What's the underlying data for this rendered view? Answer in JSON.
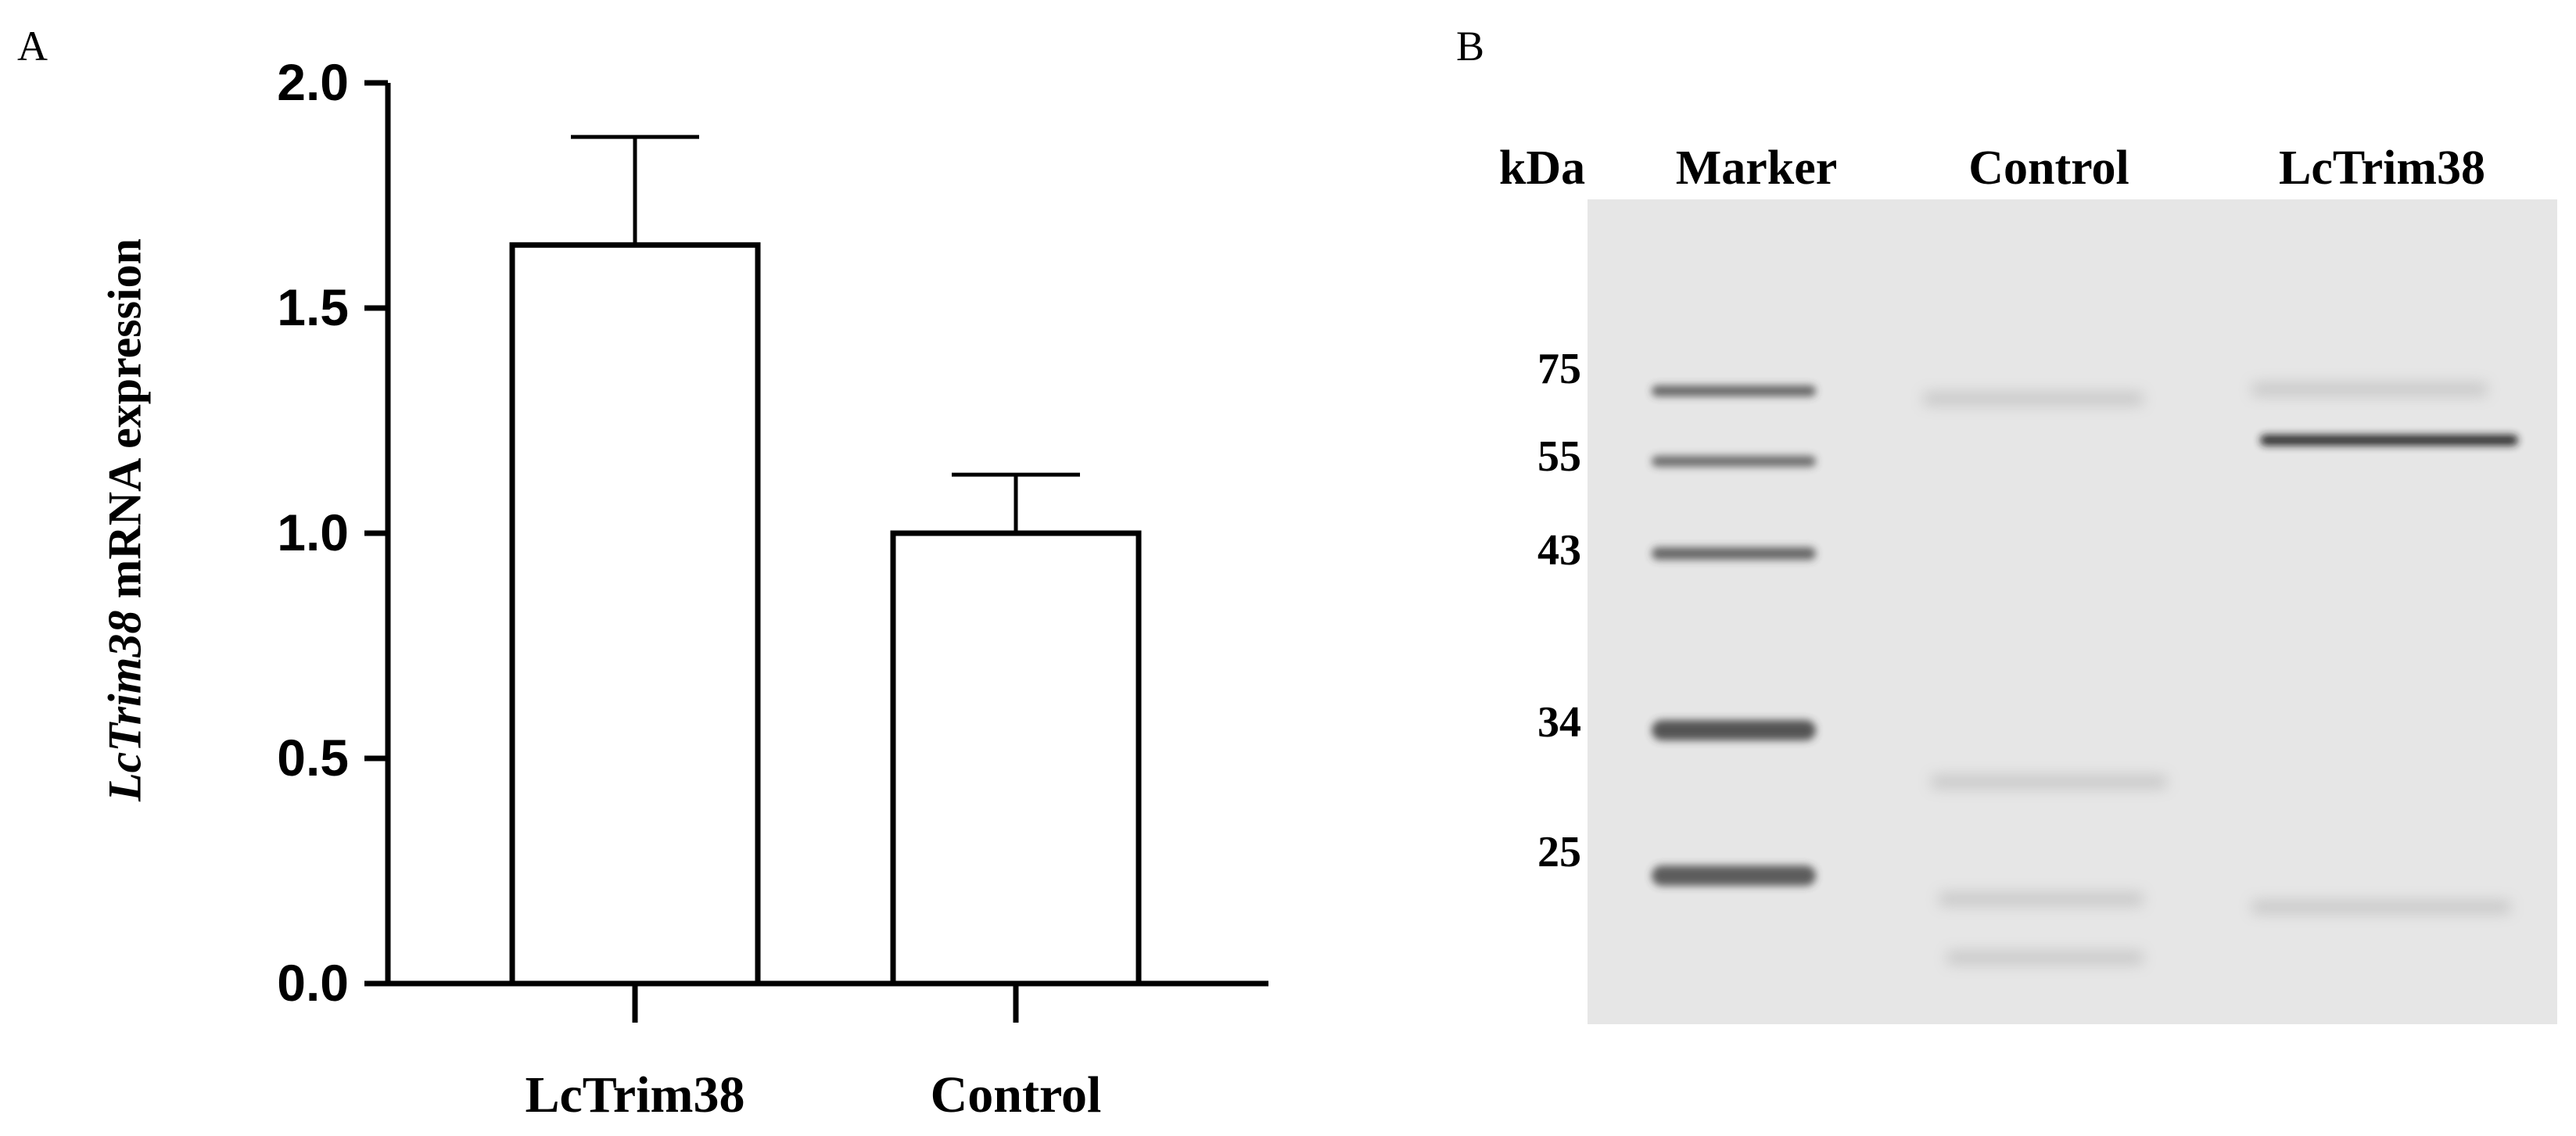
{
  "panels": {
    "a_label": "A",
    "b_label": "B"
  },
  "chart_data": {
    "type": "bar",
    "title": "",
    "categories": [
      "LcTrim38",
      "Control"
    ],
    "values": [
      1.64,
      1.0
    ],
    "errors": [
      0.24,
      0.13
    ],
    "ylabel_italic": "LcTrim38",
    "ylabel_rest": " mRNA expression",
    "xlabel": "",
    "ylim": [
      0,
      2.0
    ],
    "yticks": [
      "0.0",
      "0.5",
      "1.0",
      "1.5",
      "2.0"
    ],
    "ytick_values": [
      0,
      0.5,
      1.0,
      1.5,
      2.0
    ],
    "bar_fill": "#ffffff",
    "bar_stroke": "#000000",
    "grid": false
  },
  "blot": {
    "unit_label": "kDa",
    "lane_labels": [
      "Marker",
      "Control",
      "LcTrim38"
    ],
    "marker_sizes": [
      "75",
      "55",
      "43",
      "34",
      "25"
    ],
    "background_color": "#e6e6e6",
    "band_color": "#3a3a3a"
  }
}
